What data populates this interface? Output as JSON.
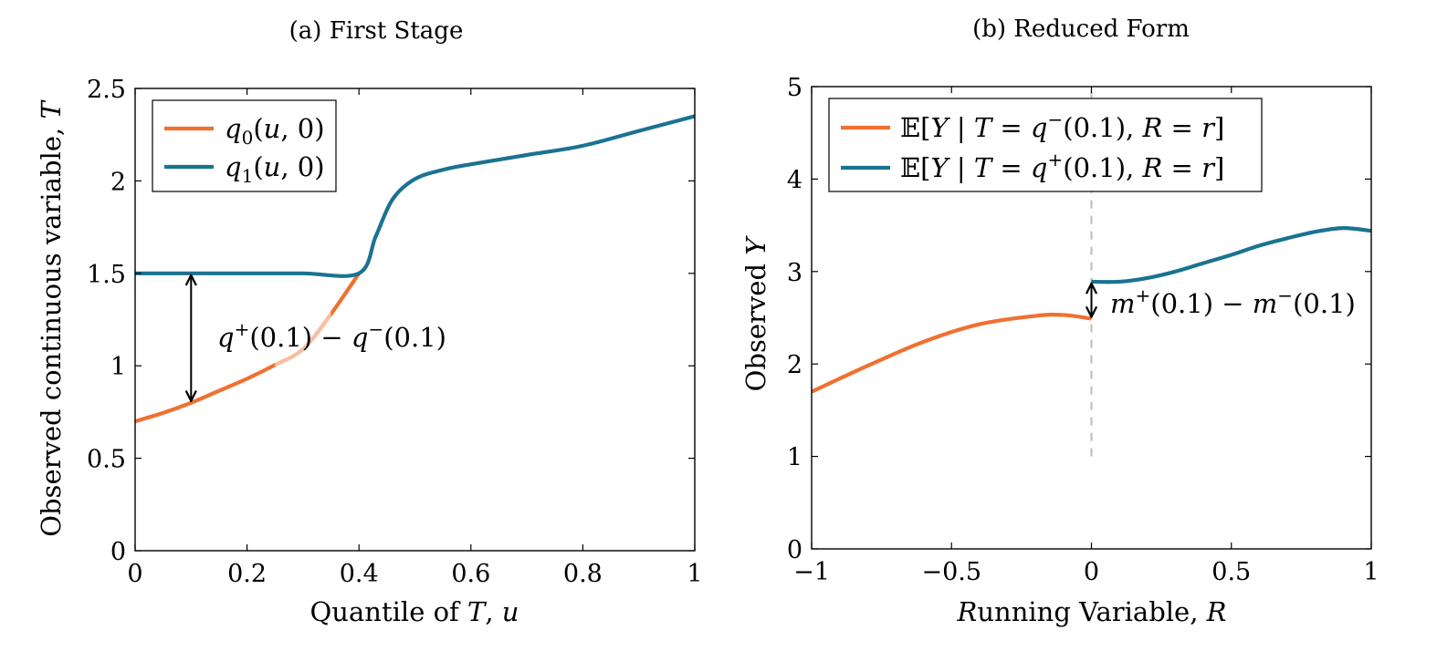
{
  "chart_data": [
    {
      "type": "line",
      "title": "(a) First Stage",
      "xlabel": "Quantile of T, u",
      "ylabel": "Observed continuous variable, T",
      "xlim": [
        0,
        1
      ],
      "ylim": [
        0,
        2.5
      ],
      "xticks": [
        "0",
        "0.2",
        "0.4",
        "0.6",
        "0.8",
        "1"
      ],
      "yticks": [
        "0",
        "0.5",
        "1",
        "1.5",
        "2",
        "2.5"
      ],
      "grid": false,
      "legend_position": "top-left",
      "series": [
        {
          "name": "q0(u, 0)",
          "color": "#f07030",
          "x": [
            0,
            0.05,
            0.1,
            0.15,
            0.2,
            0.25,
            0.3,
            0.35,
            0.4
          ],
          "y": [
            0.7,
            0.745,
            0.8,
            0.865,
            0.93,
            1.005,
            1.09,
            1.28,
            1.5
          ],
          "faded_segment_x": [
            0.25,
            0.35
          ]
        },
        {
          "name": "q1(u, 0)",
          "color": "#1a7390",
          "x": [
            0,
            0.1,
            0.2,
            0.3,
            0.4,
            0.43,
            0.46,
            0.5,
            0.55,
            0.6,
            0.7,
            0.8,
            0.9,
            1.0
          ],
          "y": [
            1.5,
            1.5,
            1.5,
            1.5,
            1.5,
            1.7,
            1.9,
            2.01,
            2.06,
            2.09,
            2.14,
            2.19,
            2.27,
            2.35
          ]
        }
      ],
      "annotations": [
        {
          "text": "q+(0.1) − q−(0.1)",
          "arrow_x": 0.1,
          "arrow_y": [
            0.8,
            1.5
          ]
        }
      ]
    },
    {
      "type": "line",
      "title": "(b) Reduced Form",
      "xlabel": "Running Variable, R",
      "ylabel": "Observed Y",
      "xlim": [
        -1,
        1
      ],
      "ylim": [
        0,
        5
      ],
      "xticks": [
        "−1",
        "−0.5",
        "0",
        "0.5",
        "1"
      ],
      "yticks": [
        "0",
        "1",
        "2",
        "3",
        "4",
        "5"
      ],
      "grid": false,
      "legend_position": "top-left",
      "cutoff_line": {
        "x": 0,
        "y_range": [
          1,
          5
        ],
        "color": "#bbbbbb",
        "style": "dashed"
      },
      "series": [
        {
          "name": "𝔼[Y | T = q−(0.1), R = r]",
          "color": "#f07030",
          "x": [
            -1,
            -0.8,
            -0.6,
            -0.4,
            -0.2,
            -0.1,
            0
          ],
          "y": [
            1.7,
            1.98,
            2.24,
            2.43,
            2.52,
            2.53,
            2.49
          ]
        },
        {
          "name": "𝔼[Y | T = q+(0.1), R = r]",
          "color": "#1a7390",
          "x": [
            0,
            0.1,
            0.2,
            0.3,
            0.4,
            0.5,
            0.6,
            0.7,
            0.8,
            0.9,
            1.0
          ],
          "y": [
            2.89,
            2.89,
            2.93,
            3.0,
            3.09,
            3.18,
            3.28,
            3.36,
            3.43,
            3.47,
            3.44
          ]
        }
      ],
      "annotations": [
        {
          "text": "m+(0.1) − m−(0.1)",
          "arrow_x": 0,
          "arrow_y": [
            2.49,
            2.89
          ]
        }
      ]
    }
  ]
}
